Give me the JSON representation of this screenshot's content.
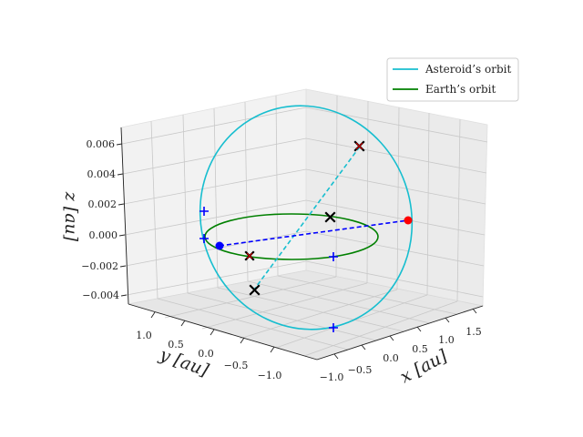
{
  "chart_data": {
    "type": "line",
    "projection": "3d",
    "title": "",
    "xlabel": "x [au]",
    "ylabel": "y [au]",
    "zlabel": "z [au]",
    "xlim": [
      -1.2,
      1.7
    ],
    "ylim": [
      -1.3,
      1.6
    ],
    "zlim": [
      -0.0045,
      0.0068
    ],
    "x_ticks": [
      "−1.0",
      "−0.5",
      "0.0",
      "0.5",
      "1.0",
      "1.5"
    ],
    "y_ticks": [
      "−1.0",
      "−0.5",
      "0.0",
      "0.5",
      "1.0"
    ],
    "z_ticks": [
      "−0.004",
      "−0.002",
      "0.000",
      "0.002",
      "0.004",
      "0.006"
    ],
    "grid": true,
    "legend_position": "top-right",
    "legend": [
      "Asteroid’s orbit",
      "Earth’s orbit"
    ],
    "colors": {
      "asteroid": "#17becf",
      "earth": "#008000",
      "dashed_line": "#0000ff",
      "node_line": "#17becf",
      "sun_marker": "#000000",
      "red_marker": "#ff0000",
      "blue_marker": "#0000ff",
      "cross_red": "#cc0000"
    },
    "series": [
      {
        "name": "Asteroid’s orbit",
        "kind": "ellipse",
        "semi_major_au": 1.3,
        "eccentricity": 0.25,
        "max_z_au": 0.0065
      },
      {
        "name": "Earth’s orbit",
        "kind": "circle",
        "radius_au": 1.0,
        "z_au": 0.0
      }
    ],
    "markers": [
      {
        "name": "sun",
        "symbol": "x",
        "color": "black",
        "x": 0.0,
        "y": 0.0,
        "z": 0.0
      },
      {
        "name": "earth-perihelion-point",
        "symbol": "dot",
        "color": "red",
        "x": 1.0,
        "y": 0.0,
        "z": 0.0
      },
      {
        "name": "earth-aphelion-point",
        "symbol": "dot",
        "color": "blue",
        "x": -1.0,
        "y": 0.0,
        "z": 0.0
      },
      {
        "name": "ascending-node",
        "symbol": "x",
        "color": "red-black",
        "x": 0.0,
        "y": 1.0,
        "z": 0.0065
      },
      {
        "name": "descending-node",
        "symbol": "x",
        "color": "red-black",
        "x": 0.0,
        "y": -1.0,
        "z": 0.0
      },
      {
        "name": "orbit-low-point",
        "symbol": "x",
        "color": "black",
        "x": 0.0,
        "y": -1.3,
        "z": -0.004
      }
    ]
  }
}
